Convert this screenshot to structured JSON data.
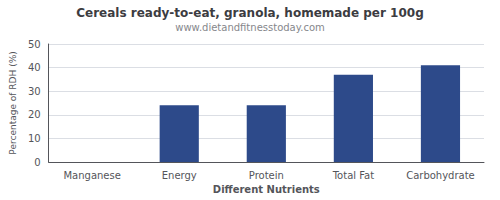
{
  "chart_data": {
    "type": "bar",
    "title": "Cereals ready-to-eat, granola, homemade per 100g",
    "subtitle": "www.dietandfitnesstoday.com",
    "xlabel": "Different Nutrients",
    "ylabel": "Percentage of RDH (%)",
    "categories": [
      "Manganese",
      "Energy",
      "Protein",
      "Total Fat",
      "Carbohydrate"
    ],
    "values": [
      0,
      24,
      24,
      37,
      41
    ],
    "color": "#2d4a8a",
    "ylim": [
      0,
      50
    ],
    "yticks": [
      0,
      10,
      20,
      30,
      40,
      50
    ],
    "grid": true
  }
}
